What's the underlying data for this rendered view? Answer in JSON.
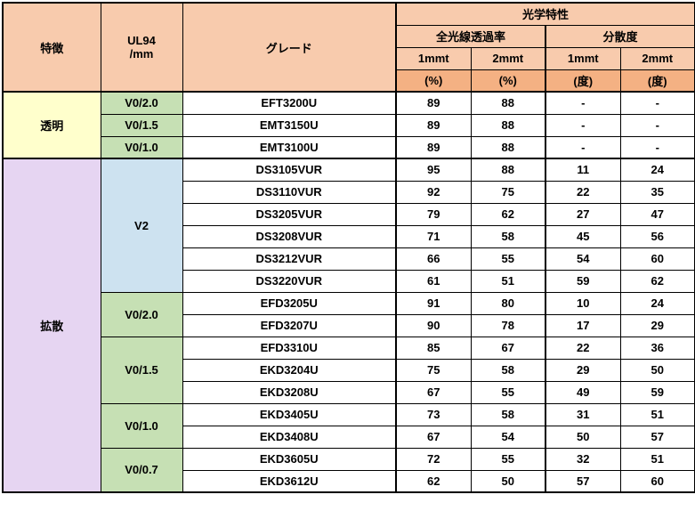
{
  "headers": {
    "feature": "特徴",
    "ul94": "UL94\n/mm",
    "grade": "グレード",
    "optical": "光学特性",
    "trans": "全光線透過率",
    "disp": "分散度",
    "t1": "1mmt",
    "t2": "2mmt",
    "pct": "(%)",
    "deg": "(度)"
  },
  "feat": {
    "transparent": "透明",
    "diffuse": "拡散"
  },
  "ul": {
    "v020": "V0/2.0",
    "v015": "V0/1.5",
    "v010": "V0/1.0",
    "v2": "V2",
    "v007": "V0/0.7"
  },
  "rows": [
    {
      "g": "EFT3200U",
      "a": "89",
      "b": "88",
      "c": "-",
      "d": "-"
    },
    {
      "g": "EMT3150U",
      "a": "89",
      "b": "88",
      "c": "-",
      "d": "-"
    },
    {
      "g": "EMT3100U",
      "a": "89",
      "b": "88",
      "c": "-",
      "d": "-"
    },
    {
      "g": "DS3105VUR",
      "a": "95",
      "b": "88",
      "c": "11",
      "d": "24"
    },
    {
      "g": "DS3110VUR",
      "a": "92",
      "b": "75",
      "c": "22",
      "d": "35"
    },
    {
      "g": "DS3205VUR",
      "a": "79",
      "b": "62",
      "c": "27",
      "d": "47"
    },
    {
      "g": "DS3208VUR",
      "a": "71",
      "b": "58",
      "c": "45",
      "d": "56"
    },
    {
      "g": "DS3212VUR",
      "a": "66",
      "b": "55",
      "c": "54",
      "d": "60"
    },
    {
      "g": "DS3220VUR",
      "a": "61",
      "b": "51",
      "c": "59",
      "d": "62"
    },
    {
      "g": "EFD3205U",
      "a": "91",
      "b": "80",
      "c": "10",
      "d": "24"
    },
    {
      "g": "EFD3207U",
      "a": "90",
      "b": "78",
      "c": "17",
      "d": "29"
    },
    {
      "g": "EFD3310U",
      "a": "85",
      "b": "67",
      "c": "22",
      "d": "36"
    },
    {
      "g": "EKD3204U",
      "a": "75",
      "b": "58",
      "c": "29",
      "d": "50"
    },
    {
      "g": "EKD3208U",
      "a": "67",
      "b": "55",
      "c": "49",
      "d": "59"
    },
    {
      "g": "EKD3405U",
      "a": "73",
      "b": "58",
      "c": "31",
      "d": "51"
    },
    {
      "g": "EKD3408U",
      "a": "67",
      "b": "54",
      "c": "50",
      "d": "57"
    },
    {
      "g": "EKD3605U",
      "a": "72",
      "b": "55",
      "c": "32",
      "d": "51"
    },
    {
      "g": "EKD3612U",
      "a": "62",
      "b": "50",
      "c": "57",
      "d": "60"
    }
  ]
}
